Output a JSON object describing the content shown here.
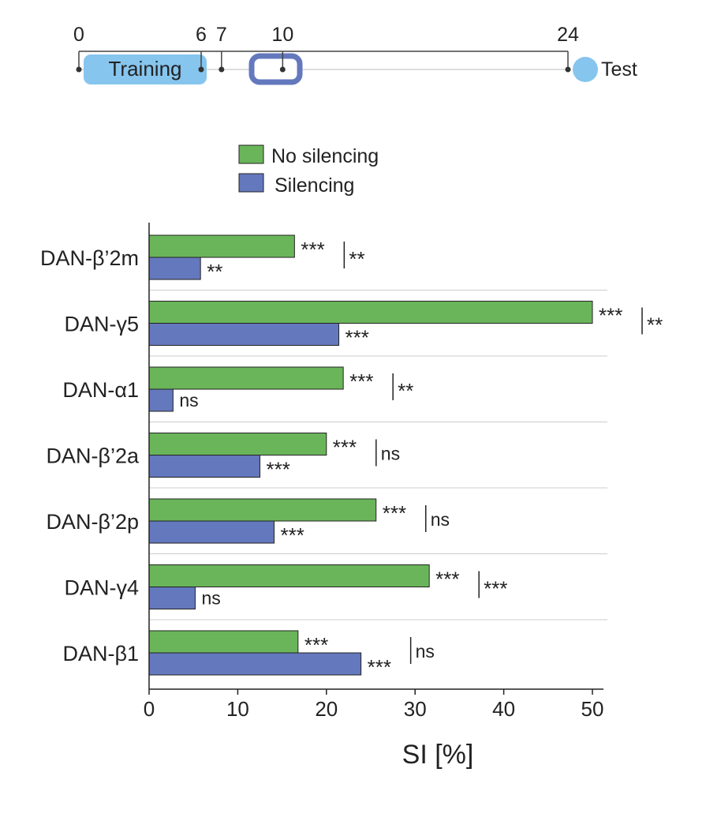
{
  "timeline": {
    "ticks": [
      "0",
      "6",
      "7",
      "10",
      "24"
    ],
    "tick_hours": [
      0,
      6,
      7,
      10,
      24
    ],
    "training_label": "Training",
    "test_label": "Test",
    "colors": {
      "training": "#86c5ee",
      "silencing": "#6478bd",
      "test": "#86c5ee"
    }
  },
  "chart_data": {
    "type": "bar",
    "orientation": "horizontal",
    "categories": [
      "DAN-β’2m",
      "DAN-γ5",
      "DAN-α1",
      "DAN-β’2a",
      "DAN-β’2p",
      "DAN-γ4",
      "DAN-β1"
    ],
    "series": [
      {
        "name": "No silencing",
        "color": "#6ab55a",
        "values": [
          16.4,
          50.0,
          21.9,
          20.0,
          25.6,
          31.6,
          16.8
        ],
        "significance": [
          "***",
          "***",
          "***",
          "***",
          "***",
          "***",
          "***"
        ]
      },
      {
        "name": "Silencing",
        "color": "#6478bd",
        "values": [
          5.8,
          21.4,
          2.7,
          12.5,
          14.1,
          5.2,
          23.9
        ],
        "significance": [
          "**",
          "***",
          "ns",
          "***",
          "***",
          "ns",
          "***"
        ]
      }
    ],
    "comparison_significance": [
      "**",
      "**",
      "**",
      "ns",
      "ns",
      "***",
      "ns"
    ],
    "xlabel": "SI [%]",
    "ylabel": "",
    "xlim": [
      0,
      50
    ],
    "xticks": [
      "0",
      "10",
      "20",
      "30",
      "40",
      "50"
    ],
    "legend": [
      "No silencing",
      "Silencing"
    ],
    "legend_position": "top"
  }
}
